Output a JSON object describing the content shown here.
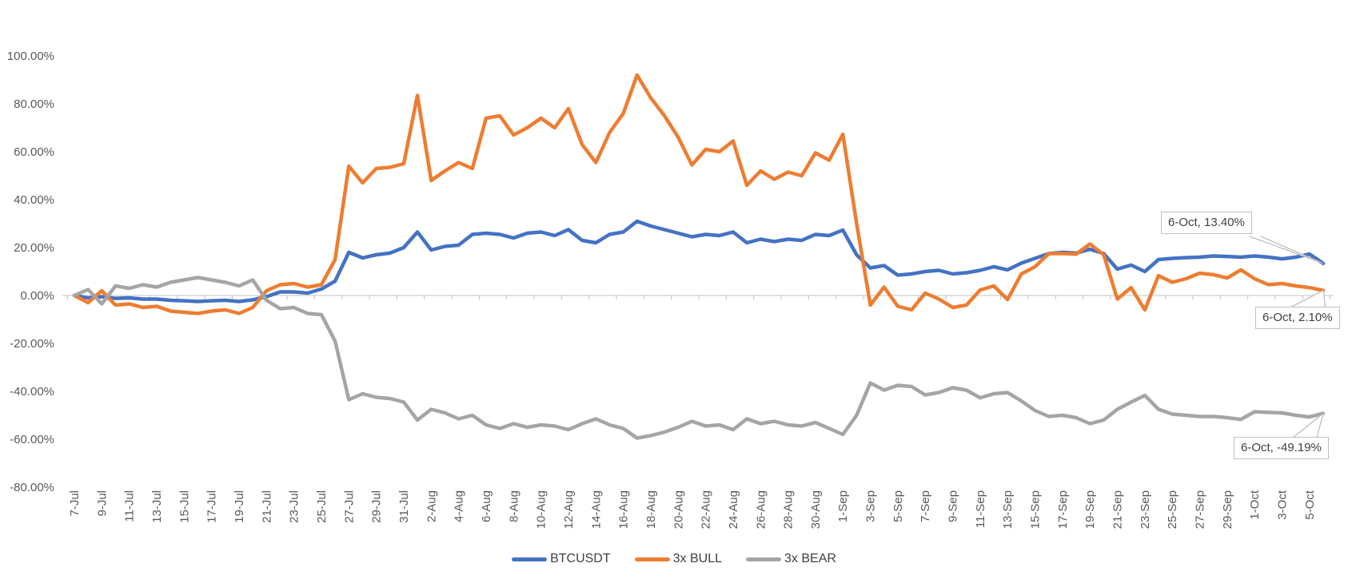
{
  "chart_data": {
    "type": "line",
    "title": "",
    "xlabel": "",
    "ylabel": "",
    "y_axis": {
      "min": -80,
      "max": 100,
      "step": 20,
      "format": "percent"
    },
    "y_tick_labels": [
      "100.00%",
      "80.00%",
      "60.00%",
      "40.00%",
      "20.00%",
      "0.00%",
      "-20.00%",
      "-40.00%",
      "-60.00%",
      "-80.00%"
    ],
    "x_tick_labels": [
      "7-Jul",
      "9-Jul",
      "11-Jul",
      "13-Jul",
      "15-Jul",
      "17-Jul",
      "19-Jul",
      "21-Jul",
      "23-Jul",
      "25-Jul",
      "27-Jul",
      "29-Jul",
      "31-Jul",
      "2-Aug",
      "4-Aug",
      "6-Aug",
      "8-Aug",
      "10-Aug",
      "12-Aug",
      "14-Aug",
      "16-Aug",
      "18-Aug",
      "20-Aug",
      "22-Aug",
      "24-Aug",
      "26-Aug",
      "28-Aug",
      "30-Aug",
      "1-Sep",
      "3-Sep",
      "5-Sep",
      "7-Sep",
      "9-Sep",
      "11-Sep",
      "13-Sep",
      "15-Sep",
      "17-Sep",
      "19-Sep",
      "21-Sep",
      "23-Sep",
      "25-Sep",
      "27-Sep",
      "29-Sep",
      "1-Oct",
      "3-Oct",
      "5-Oct"
    ],
    "x": [
      "7-Jul",
      "8-Jul",
      "9-Jul",
      "10-Jul",
      "11-Jul",
      "12-Jul",
      "13-Jul",
      "14-Jul",
      "15-Jul",
      "16-Jul",
      "17-Jul",
      "18-Jul",
      "19-Jul",
      "20-Jul",
      "21-Jul",
      "22-Jul",
      "23-Jul",
      "24-Jul",
      "25-Jul",
      "26-Jul",
      "27-Jul",
      "28-Jul",
      "29-Jul",
      "30-Jul",
      "31-Jul",
      "1-Aug",
      "2-Aug",
      "3-Aug",
      "4-Aug",
      "5-Aug",
      "6-Aug",
      "7-Aug",
      "8-Aug",
      "9-Aug",
      "10-Aug",
      "11-Aug",
      "12-Aug",
      "13-Aug",
      "14-Aug",
      "15-Aug",
      "16-Aug",
      "17-Aug",
      "18-Aug",
      "19-Aug",
      "20-Aug",
      "21-Aug",
      "22-Aug",
      "23-Aug",
      "24-Aug",
      "25-Aug",
      "26-Aug",
      "27-Aug",
      "28-Aug",
      "29-Aug",
      "30-Aug",
      "31-Aug",
      "1-Sep",
      "2-Sep",
      "3-Sep",
      "4-Sep",
      "5-Sep",
      "6-Sep",
      "7-Sep",
      "8-Sep",
      "9-Sep",
      "10-Sep",
      "11-Sep",
      "12-Sep",
      "13-Sep",
      "14-Sep",
      "15-Sep",
      "16-Sep",
      "17-Sep",
      "18-Sep",
      "19-Sep",
      "20-Sep",
      "21-Sep",
      "22-Sep",
      "23-Sep",
      "24-Sep",
      "25-Sep",
      "26-Sep",
      "27-Sep",
      "28-Sep",
      "29-Sep",
      "30-Sep",
      "1-Oct",
      "2-Oct",
      "3-Oct",
      "4-Oct",
      "5-Oct",
      "6-Oct"
    ],
    "series": [
      {
        "name": "BTCUSDT",
        "color": "#4472C4",
        "values": [
          0,
          -1,
          -0.5,
          -1.2,
          -1,
          -1.5,
          -1.5,
          -2,
          -2.2,
          -2.5,
          -2.2,
          -2,
          -2.5,
          -1.8,
          -0.5,
          1.5,
          1.5,
          1,
          2.7,
          6,
          18,
          15.7,
          17,
          17.7,
          20,
          26.5,
          19,
          20.5,
          21,
          25.5,
          26,
          25.5,
          24,
          26,
          26.5,
          25,
          27.5,
          23,
          22,
          25.5,
          26.5,
          31,
          29,
          27.5,
          26,
          24.5,
          25.5,
          25,
          26.5,
          22,
          23.5,
          22.5,
          23.5,
          23,
          25.5,
          25,
          27.3,
          17,
          11.5,
          12.5,
          8.5,
          9,
          10,
          10.5,
          9,
          9.5,
          10.5,
          12,
          10.7,
          13.5,
          15.5,
          17.5,
          18,
          17.7,
          19.3,
          17.5,
          11,
          12.7,
          10,
          15,
          15.5,
          15.8,
          16,
          16.5,
          16.3,
          16,
          16.5,
          16,
          15.3,
          16,
          17.3,
          13.4
        ]
      },
      {
        "name": "3x BULL",
        "color": "#ED7D31",
        "values": [
          0,
          -3,
          2,
          -4,
          -3.5,
          -5,
          -4.5,
          -6.5,
          -7,
          -7.5,
          -6.5,
          -6,
          -7.5,
          -5,
          2,
          4.5,
          5,
          3.5,
          4.5,
          15,
          54,
          47,
          53,
          53.5,
          55,
          83.5,
          48,
          52,
          55.5,
          53,
          74,
          75,
          67,
          70,
          74,
          70,
          78,
          63,
          55.5,
          68,
          76,
          92,
          82.5,
          75,
          66,
          54.5,
          61,
          60,
          64.5,
          46,
          52,
          48.5,
          51.5,
          50,
          59.5,
          56.5,
          67.3,
          30,
          -4,
          3.5,
          -4.5,
          -6,
          1,
          -1.5,
          -5,
          -4,
          2.3,
          4,
          -1.7,
          9,
          12,
          17.5,
          17.5,
          17.3,
          21.5,
          17,
          -1.5,
          3.3,
          -6,
          8.3,
          5.5,
          7,
          9.3,
          8.7,
          7.3,
          10.7,
          7,
          4.5,
          5,
          4,
          3.3,
          2.1
        ]
      },
      {
        "name": "3x BEAR",
        "color": "#A5A5A5",
        "values": [
          0,
          2.5,
          -3.5,
          4,
          3,
          4.5,
          3.5,
          5.5,
          6.5,
          7.5,
          6.5,
          5.5,
          4,
          6.5,
          -2,
          -5.5,
          -5,
          -7.5,
          -8,
          -19,
          -43.5,
          -41,
          -42.5,
          -43,
          -44.5,
          -52,
          -47.5,
          -49,
          -51.5,
          -50,
          -54,
          -55.5,
          -53.5,
          -55,
          -54,
          -54.5,
          -56,
          -53.5,
          -51.5,
          -54,
          -55.5,
          -59.5,
          -58.5,
          -57,
          -55,
          -52.5,
          -54.5,
          -54,
          -56,
          -51.5,
          -53.5,
          -52.5,
          -54,
          -54.5,
          -53,
          -55.5,
          -58,
          -50,
          -36.5,
          -39.5,
          -37.5,
          -38,
          -41.5,
          -40.5,
          -38.5,
          -39.5,
          -42.7,
          -41,
          -40.5,
          -44,
          -48,
          -50.5,
          -50,
          -51,
          -53.5,
          -52,
          -47.5,
          -44.5,
          -41.7,
          -47.5,
          -49.5,
          -50,
          -50.5,
          -50.5,
          -51,
          -51.7,
          -48.5,
          -48.8,
          -49,
          -50,
          -50.7,
          -49.19
        ]
      }
    ],
    "annotations": [
      {
        "text": "6-Oct, 13.40%",
        "series": "BTCUSDT",
        "point": "6-Oct",
        "value": 13.4
      },
      {
        "text": "6-Oct, 2.10%",
        "series": "3x BULL",
        "point": "6-Oct",
        "value": 2.1
      },
      {
        "text": "6-Oct, -49.19%",
        "series": "3x BEAR",
        "point": "6-Oct",
        "value": -49.19
      }
    ],
    "legend": [
      "BTCUSDT",
      "3x BULL",
      "3x BEAR"
    ],
    "legend_position": "bottom",
    "grid": "zero-line-only"
  },
  "colors": {
    "axis_text": "#595959",
    "zero_line": "#D9D9D9",
    "tick": "#BFBFBF",
    "callout_border": "#BFBFBF",
    "callout_text": "#3f3f3f",
    "background": "#ffffff"
  }
}
